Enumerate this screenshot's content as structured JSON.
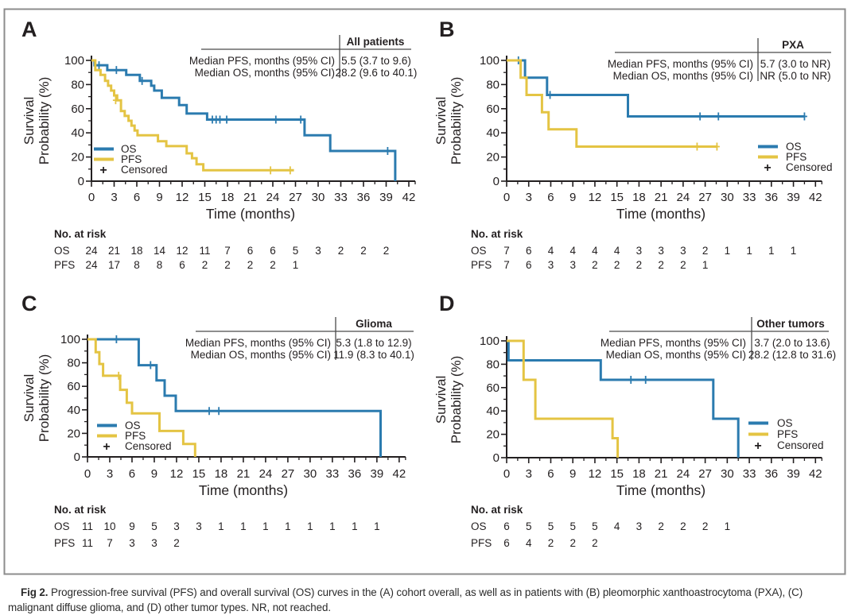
{
  "colors": {
    "os": "#2B7BAF",
    "pfs": "#E4C443",
    "axis": "#231F20",
    "text": "#231F20",
    "border": "#8C8C8C"
  },
  "legend": {
    "os": "OS",
    "pfs": "PFS",
    "censored_symbol": "+",
    "censored": "Censored"
  },
  "axis": {
    "xlabel": "Time (months)",
    "ylabel_line1": "Survival",
    "ylabel_line2": "Probability (%)",
    "xticks": [
      0,
      3,
      6,
      9,
      12,
      15,
      18,
      21,
      24,
      27,
      30,
      33,
      36,
      39,
      42
    ],
    "yticks": [
      0,
      20,
      40,
      60,
      80,
      100
    ],
    "xlim": [
      0,
      42
    ],
    "ylim": [
      0,
      100
    ]
  },
  "risk_header": "No. at risk",
  "caption": {
    "prefix": "Fig 2.",
    "text": " Progression-free survival (PFS) and overall survival (OS) curves in the (A) cohort overall, as well as in patients with (B) pleomorphic xanthoastrocytoma (PXA), (C) malignant diffuse glioma, and (D) other tumor types. NR, not reached."
  },
  "chart_data": [
    {
      "panel": "A",
      "type": "line",
      "group": "All patients",
      "stats_rows": [
        {
          "label": "Median PFS, months (95% CI)",
          "value": "5.5 (3.7 to 9.6)"
        },
        {
          "label": "Median OS, months (95% CI)",
          "value": "28.2 (9.6 to 40.1)"
        }
      ],
      "series": [
        {
          "name": "OS",
          "steps": [
            [
              0,
              100
            ],
            [
              0.4,
              96
            ],
            [
              2.1,
              92
            ],
            [
              4.6,
              88
            ],
            [
              6.4,
              83
            ],
            [
              7.9,
              79
            ],
            [
              8.3,
              75
            ],
            [
              9.3,
              69
            ],
            [
              11.6,
              63
            ],
            [
              12.6,
              56
            ],
            [
              15.3,
              51
            ],
            [
              28.2,
              38
            ],
            [
              31.6,
              25
            ],
            [
              40.2,
              0
            ]
          ],
          "censors": [
            [
              1.0,
              96
            ],
            [
              3.3,
              92
            ],
            [
              6.7,
              83
            ],
            [
              16.0,
              51
            ],
            [
              16.5,
              51
            ],
            [
              17.0,
              51
            ],
            [
              17.9,
              51
            ],
            [
              24.4,
              51
            ],
            [
              27.7,
              51
            ],
            [
              39.2,
              25
            ]
          ],
          "end_t": null
        },
        {
          "name": "PFS",
          "steps": [
            [
              0,
              100
            ],
            [
              0.5,
              92
            ],
            [
              1.2,
              88
            ],
            [
              1.8,
              83
            ],
            [
              2.2,
              79
            ],
            [
              2.6,
              75
            ],
            [
              3.0,
              71
            ],
            [
              3.4,
              67
            ],
            [
              3.9,
              58
            ],
            [
              4.4,
              54
            ],
            [
              4.9,
              50
            ],
            [
              5.3,
              46
            ],
            [
              5.7,
              42
            ],
            [
              6.1,
              38
            ],
            [
              8.8,
              33
            ],
            [
              9.9,
              29
            ],
            [
              12.6,
              23
            ],
            [
              13.3,
              19
            ],
            [
              13.9,
              14
            ],
            [
              14.8,
              9
            ]
          ],
          "censors": [
            [
              3.2,
              67
            ],
            [
              23.7,
              9
            ],
            [
              26.3,
              9
            ]
          ],
          "end_t": 26.8
        }
      ],
      "risk": [
        {
          "name": "OS",
          "values": [
            24,
            21,
            18,
            14,
            12,
            11,
            7,
            6,
            6,
            5,
            3,
            2,
            2,
            2
          ]
        },
        {
          "name": "PFS",
          "values": [
            24,
            17,
            8,
            8,
            6,
            2,
            2,
            2,
            2,
            1
          ]
        }
      ]
    },
    {
      "panel": "B",
      "type": "line",
      "group": "PXA",
      "stats_rows": [
        {
          "label": "Median PFS, months (95% CI)",
          "value": "5.7 (3.0 to NR)"
        },
        {
          "label": "Median OS, months (95% CI)",
          "value": "NR (5.0 to NR)"
        }
      ],
      "series": [
        {
          "name": "OS",
          "steps": [
            [
              0,
              100
            ],
            [
              2.5,
              85.7
            ],
            [
              5.5,
              71.4
            ],
            [
              16.5,
              53.6
            ]
          ],
          "censors": [
            [
              1.6,
              100
            ],
            [
              5.9,
              71.4
            ],
            [
              26.3,
              53.6
            ],
            [
              28.8,
              53.6
            ],
            [
              40.5,
              53.6
            ]
          ],
          "end_t": 40.6
        },
        {
          "name": "PFS",
          "steps": [
            [
              0,
              100
            ],
            [
              1.9,
              85.7
            ],
            [
              2.7,
              71.4
            ],
            [
              4.8,
              57.1
            ],
            [
              5.7,
              42.9
            ],
            [
              9.5,
              28.6
            ]
          ],
          "censors": [
            [
              25.9,
              28.6
            ],
            [
              28.6,
              28.6
            ]
          ],
          "end_t": 28.7
        }
      ],
      "risk": [
        {
          "name": "OS",
          "values": [
            7,
            6,
            4,
            4,
            4,
            4,
            3,
            3,
            3,
            2,
            1,
            1,
            1,
            1
          ]
        },
        {
          "name": "PFS",
          "values": [
            7,
            6,
            3,
            3,
            2,
            2,
            2,
            2,
            2,
            1
          ]
        }
      ]
    },
    {
      "panel": "C",
      "type": "line",
      "group": "Glioma",
      "stats_rows": [
        {
          "label": "Median PFS, months (95% CI)",
          "value": "5.3 (1.8 to 12.9)"
        },
        {
          "label": "Median OS, months (95% CI)",
          "value": "11.9 (8.3 to 40.1)"
        }
      ],
      "series": [
        {
          "name": "OS",
          "steps": [
            [
              0,
              100
            ],
            [
              6.9,
              78
            ],
            [
              9.3,
              65
            ],
            [
              10.4,
              52
            ],
            [
              11.9,
              39
            ],
            [
              39.5,
              0
            ]
          ],
          "censors": [
            [
              3.9,
              100
            ],
            [
              8.5,
              78
            ],
            [
              16.4,
              39
            ],
            [
              17.7,
              39
            ]
          ],
          "end_t": null
        },
        {
          "name": "PFS",
          "steps": [
            [
              0,
              100
            ],
            [
              1.1,
              89
            ],
            [
              1.6,
              79
            ],
            [
              2.1,
              69
            ],
            [
              4.4,
              57
            ],
            [
              5.3,
              46
            ],
            [
              6.0,
              37
            ],
            [
              9.7,
              22
            ],
            [
              12.9,
              11
            ],
            [
              14.5,
              0
            ]
          ],
          "censors": [
            [
              4.2,
              69
            ]
          ],
          "end_t": null
        }
      ],
      "risk": [
        {
          "name": "OS",
          "values": [
            11,
            10,
            9,
            5,
            3,
            3,
            1,
            1,
            1,
            1,
            1,
            1,
            1,
            1
          ]
        },
        {
          "name": "PFS",
          "values": [
            11,
            7,
            3,
            3,
            2
          ]
        }
      ]
    },
    {
      "panel": "D",
      "type": "line",
      "group": "Other tumors",
      "stats_rows": [
        {
          "label": "Median PFS, months (95% CI)",
          "value": "3.7 (2.0 to 13.6)"
        },
        {
          "label": "Median OS, months (95% CI)",
          "value": "28.2 (12.8 to 31.6)"
        }
      ],
      "series": [
        {
          "name": "OS",
          "steps": [
            [
              0,
              100
            ],
            [
              0.25,
              83.3
            ],
            [
              12.8,
              66.7
            ],
            [
              28.1,
              33.3
            ],
            [
              31.5,
              0
            ]
          ],
          "censors": [
            [
              16.9,
              66.7
            ],
            [
              18.9,
              66.7
            ]
          ],
          "end_t": null
        },
        {
          "name": "PFS",
          "steps": [
            [
              0,
              100
            ],
            [
              2.3,
              66.7
            ],
            [
              3.9,
              33.3
            ],
            [
              14.4,
              16.7
            ],
            [
              15.1,
              0
            ]
          ],
          "censors": [],
          "end_t": null
        }
      ],
      "risk": [
        {
          "name": "OS",
          "values": [
            6,
            5,
            5,
            5,
            5,
            4,
            3,
            2,
            2,
            2,
            1
          ]
        },
        {
          "name": "PFS",
          "values": [
            6,
            4,
            2,
            2,
            2
          ]
        }
      ]
    }
  ]
}
